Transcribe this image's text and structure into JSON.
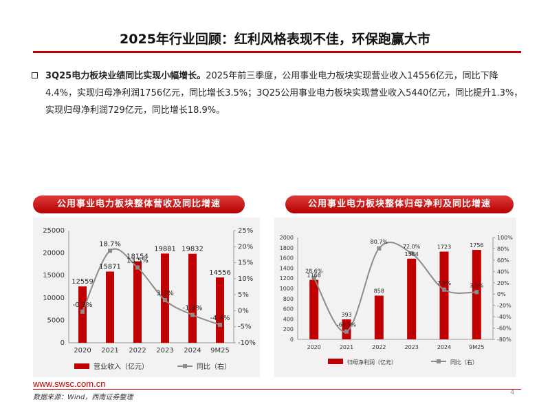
{
  "page": {
    "title": "2025年行业回顾：红利风格表现不佳，环保跑赢大市",
    "bullet_bold": "3Q25电力板块业绩同比实现小幅增长。",
    "bullet_text": "2025年前三季度，公用事业电力板块实现营业收入14556亿元，同比下降4.4%，实现归母净利润1756亿元，同比增长3.5%；3Q25公用事业电力板块实现营业收入5440亿元，同比提升1.3%，实现归母净利润729亿元，同比增长18.9%。",
    "footer_url": "www.swsc.com.cn",
    "footer_source": "数据来源：Wind，西南证券整理",
    "page_number": "4"
  },
  "colors": {
    "bar": "#c00000",
    "line": "#8c8c8c",
    "accent": "#c00000"
  },
  "chart_data": [
    {
      "type": "bar+line",
      "title": "公用事业电力板块整体营收及同比增速",
      "categories": [
        "2020",
        "2021",
        "2022",
        "2023",
        "2024",
        "9M25"
      ],
      "series": [
        {
          "name": "营业收入（亿元）",
          "type": "bar",
          "axis": "left",
          "values": [
            12559,
            15871,
            18154,
            19881,
            19832,
            14556
          ],
          "labels": [
            "12559",
            "15871",
            "18154",
            "19881",
            "19832",
            "14556"
          ]
        },
        {
          "name": "同比（右）",
          "type": "line",
          "axis": "right",
          "values": [
            -0.3,
            18.7,
            13.5,
            3.3,
            -1.3,
            -4.4
          ],
          "labels": [
            "-0.3%",
            "18.7%",
            "13.5%",
            "3.3%",
            "-1.3%",
            "-4.4%"
          ]
        }
      ],
      "left_axis": {
        "min": 0,
        "max": 25000,
        "ticks": [
          "0",
          "5000",
          "10000",
          "15000",
          "20000",
          "25000"
        ]
      },
      "right_axis": {
        "min": -10,
        "max": 25,
        "ticks": [
          "-10%",
          "-5%",
          "0%",
          "5%",
          "10%",
          "15%",
          "20%",
          "25%"
        ]
      },
      "legend": [
        "营业收入（亿元）",
        "同比（右）"
      ]
    },
    {
      "type": "bar+line",
      "title": "公用事业电力板块整体归母净利及同比增速",
      "categories": [
        "2020",
        "2021",
        "2022",
        "2023",
        "2024",
        "9M25"
      ],
      "series": [
        {
          "name": "归母净利润（亿元）",
          "type": "bar",
          "axis": "left",
          "values": [
            1168,
            393,
            858,
            1584,
            1723,
            1756
          ],
          "labels": [
            "1168",
            "393",
            "858",
            "1584",
            "1723",
            "1756"
          ]
        },
        {
          "name": "同比（右）",
          "type": "line",
          "axis": "right",
          "values": [
            28.6,
            -66.3,
            80.7,
            72.0,
            7.8,
            3.5
          ],
          "labels": [
            "28.6%",
            "-66.3%",
            "80.7%",
            "72.0%",
            "7.8%",
            "3.5%"
          ]
        }
      ],
      "left_axis": {
        "min": 0,
        "max": 2000,
        "ticks": [
          "0",
          "200",
          "400",
          "600",
          "800",
          "1000",
          "1200",
          "1400",
          "1600",
          "1800",
          "2000"
        ]
      },
      "right_axis": {
        "min": -80,
        "max": 100,
        "ticks": [
          "-80%",
          "-60%",
          "-40%",
          "-20%",
          "0%",
          "20%",
          "40%",
          "60%",
          "80%",
          "100%"
        ]
      },
      "legend": [
        "归母净利润（亿元）",
        "同比（右）"
      ]
    }
  ]
}
